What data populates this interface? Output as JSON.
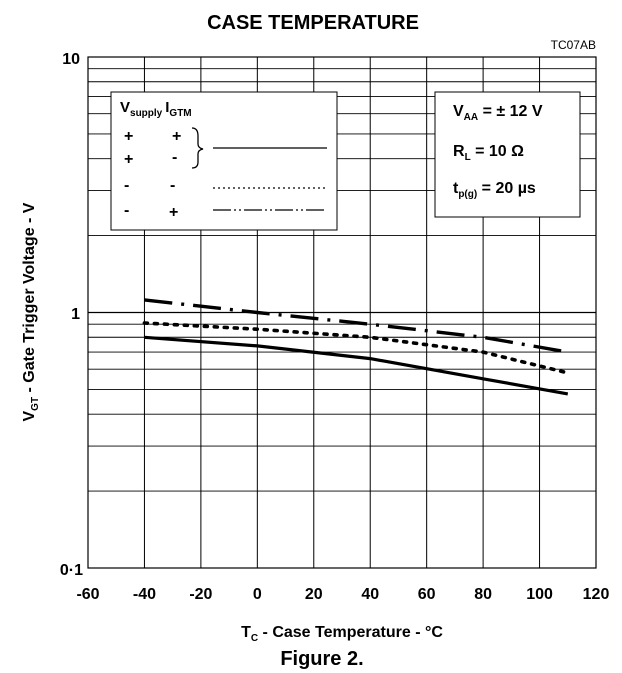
{
  "chart_data": {
    "type": "line",
    "title": "CASE TEMPERATURE",
    "code": "TC07AB",
    "figure_caption": "Figure 2.",
    "y_scale": "log",
    "ylim": [
      0.1,
      10
    ],
    "xlim": [
      -60,
      120
    ],
    "grid": true,
    "x_ticks": [
      "-60",
      "-40",
      "-20",
      "0",
      "20",
      "40",
      "60",
      "80",
      "100",
      "120"
    ],
    "y_ticks": [
      "10",
      "1",
      "0·1"
    ],
    "xlabel": {
      "main": "T",
      "sub": "C",
      "rest": " - Case Temperature - °C"
    },
    "ylabel": {
      "main": "V",
      "sub": "GT",
      "rest": " - Gate Trigger Voltage - V"
    },
    "legend": {
      "header_v": "V",
      "header_v_sub": "supply",
      "header_i": "I",
      "header_i_sub": "GTM",
      "rows": [
        {
          "supply": "+",
          "igtm": "+"
        },
        {
          "supply": "+",
          "igtm": "-"
        },
        {
          "supply": "-",
          "igtm": "-"
        },
        {
          "supply": "-",
          "igtm": "+"
        }
      ]
    },
    "conditions": [
      {
        "main": "V",
        "sub": "AA",
        "rest": " = ± 12 V"
      },
      {
        "main": "R",
        "sub": "L",
        "rest": " = 10 Ω"
      },
      {
        "main": "t",
        "sub": "p(g)",
        "rest": " = 20 µs"
      }
    ],
    "series": [
      {
        "style": "solid",
        "x": [
          -40,
          0,
          40,
          80,
          110
        ],
        "values": [
          0.8,
          0.74,
          0.66,
          0.55,
          0.48
        ]
      },
      {
        "style": "dotted",
        "x": [
          -40,
          0,
          40,
          80,
          110
        ],
        "values": [
          0.91,
          0.86,
          0.8,
          0.7,
          0.58
        ]
      },
      {
        "style": "dash-dot",
        "x": [
          -40,
          0,
          40,
          80,
          110
        ],
        "values": [
          1.12,
          1.0,
          0.9,
          0.8,
          0.7
        ]
      }
    ]
  }
}
